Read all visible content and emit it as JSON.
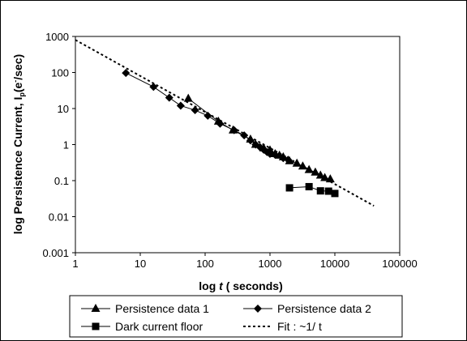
{
  "chart_data": {
    "type": "scatter",
    "title": "",
    "xlabel": {
      "prefix": "log ",
      "symbol": "t",
      "suffix": " ( seconds)"
    },
    "ylabel": {
      "main": "log Persistence Current, I",
      "sub": "p",
      "unit_open": "(e",
      "sup": "-",
      "unit_close": "/sec)"
    },
    "xscale": "log",
    "yscale": "log",
    "xlim": [
      1,
      100000
    ],
    "ylim": [
      0.001,
      1000
    ],
    "xticks": [
      "1",
      "10",
      "100",
      "1000",
      "10000",
      "100000"
    ],
    "yticks": [
      "0.001",
      "0.01",
      "0.1",
      "1",
      "10",
      "100",
      "1000"
    ],
    "grid": false,
    "legend_position": "bottom",
    "series": [
      {
        "name": "Persistence data 1",
        "marker": "triangle",
        "line": "solid",
        "color": "#000000",
        "points": [
          [
            55,
            19
          ],
          [
            160,
            4.4
          ],
          [
            270,
            2.5
          ],
          [
            500,
            1.4
          ],
          [
            600,
            1.0
          ],
          [
            800,
            0.8
          ],
          [
            1000,
            0.7
          ],
          [
            1200,
            0.55
          ],
          [
            1400,
            0.5
          ],
          [
            1600,
            0.45
          ],
          [
            2000,
            0.35
          ],
          [
            2600,
            0.3
          ],
          [
            3200,
            0.25
          ],
          [
            4000,
            0.2
          ],
          [
            5000,
            0.17
          ],
          [
            6000,
            0.14
          ],
          [
            7000,
            0.12
          ],
          [
            8500,
            0.11
          ]
        ]
      },
      {
        "name": "Persistence data 2",
        "marker": "diamond",
        "line": "solid",
        "color": "#000000",
        "points": [
          [
            6,
            97
          ],
          [
            16,
            40
          ],
          [
            28,
            20
          ],
          [
            42,
            12
          ],
          [
            70,
            9
          ],
          [
            110,
            6.3
          ],
          [
            170,
            3.8
          ],
          [
            280,
            2.5
          ],
          [
            400,
            1.8
          ],
          [
            500,
            1.3
          ],
          [
            600,
            1.0
          ],
          [
            700,
            0.85
          ],
          [
            800,
            0.72
          ],
          [
            900,
            0.62
          ],
          [
            1000,
            0.55
          ],
          [
            1200,
            0.52
          ],
          [
            1600,
            0.42
          ],
          [
            1900,
            0.38
          ]
        ]
      },
      {
        "name": "Dark current floor",
        "marker": "square",
        "line": "solid",
        "color": "#000000",
        "points": [
          [
            2000,
            0.063
          ],
          [
            4000,
            0.068
          ],
          [
            6000,
            0.052
          ],
          [
            8000,
            0.051
          ],
          [
            10000,
            0.044
          ]
        ]
      },
      {
        "name": "Fit : ~1/ t",
        "marker": "none",
        "line": "dotted",
        "color": "#000000",
        "points": [
          [
            1,
            800
          ],
          [
            40000,
            0.02
          ]
        ]
      }
    ]
  }
}
